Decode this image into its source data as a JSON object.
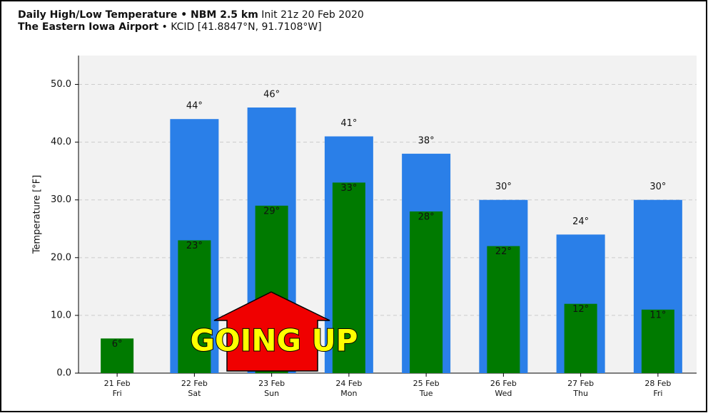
{
  "chart_data": {
    "type": "bar",
    "title": "Daily High/Low Temperature • NBM 2.5 km",
    "title_note": "Init 21z 20 Feb 2020",
    "subtitle": "The Eastern Iowa Airport",
    "subtitle_note": "• KCID [41.8847°N, 91.7108°W]",
    "ylabel": "Temperature [°F]",
    "categories": [
      "21 Feb",
      "22 Feb",
      "23 Feb",
      "24 Feb",
      "25 Feb",
      "26 Feb",
      "27 Feb",
      "28 Feb"
    ],
    "category_days": [
      "Fri",
      "Sat",
      "Sun",
      "Mon",
      "Tue",
      "Wed",
      "Thu",
      "Fri"
    ],
    "series": [
      {
        "name": "High",
        "color": "#2a7fe8",
        "values": [
          null,
          44,
          46,
          41,
          38,
          30,
          24,
          30
        ],
        "value_labels": [
          null,
          "44°",
          "46°",
          "41°",
          "38°",
          "30°",
          "24°",
          "30°"
        ]
      },
      {
        "name": "Low",
        "color": "#007a00",
        "values": [
          6,
          23,
          29,
          33,
          28,
          22,
          12,
          11
        ],
        "value_labels": [
          "6°",
          "23°",
          "29°",
          "33°",
          "28°",
          "22°",
          "12°",
          "11°"
        ]
      }
    ],
    "ylim": [
      0,
      55
    ],
    "yticks": [
      {
        "value": 0,
        "label": "0.0"
      },
      {
        "value": 10,
        "label": "10.0"
      },
      {
        "value": 20,
        "label": "20.0"
      },
      {
        "value": 30,
        "label": "30.0"
      },
      {
        "value": 40,
        "label": "40.0"
      },
      {
        "value": 50,
        "label": "50.0"
      }
    ],
    "grid": true,
    "annotation": "GOING UP"
  }
}
